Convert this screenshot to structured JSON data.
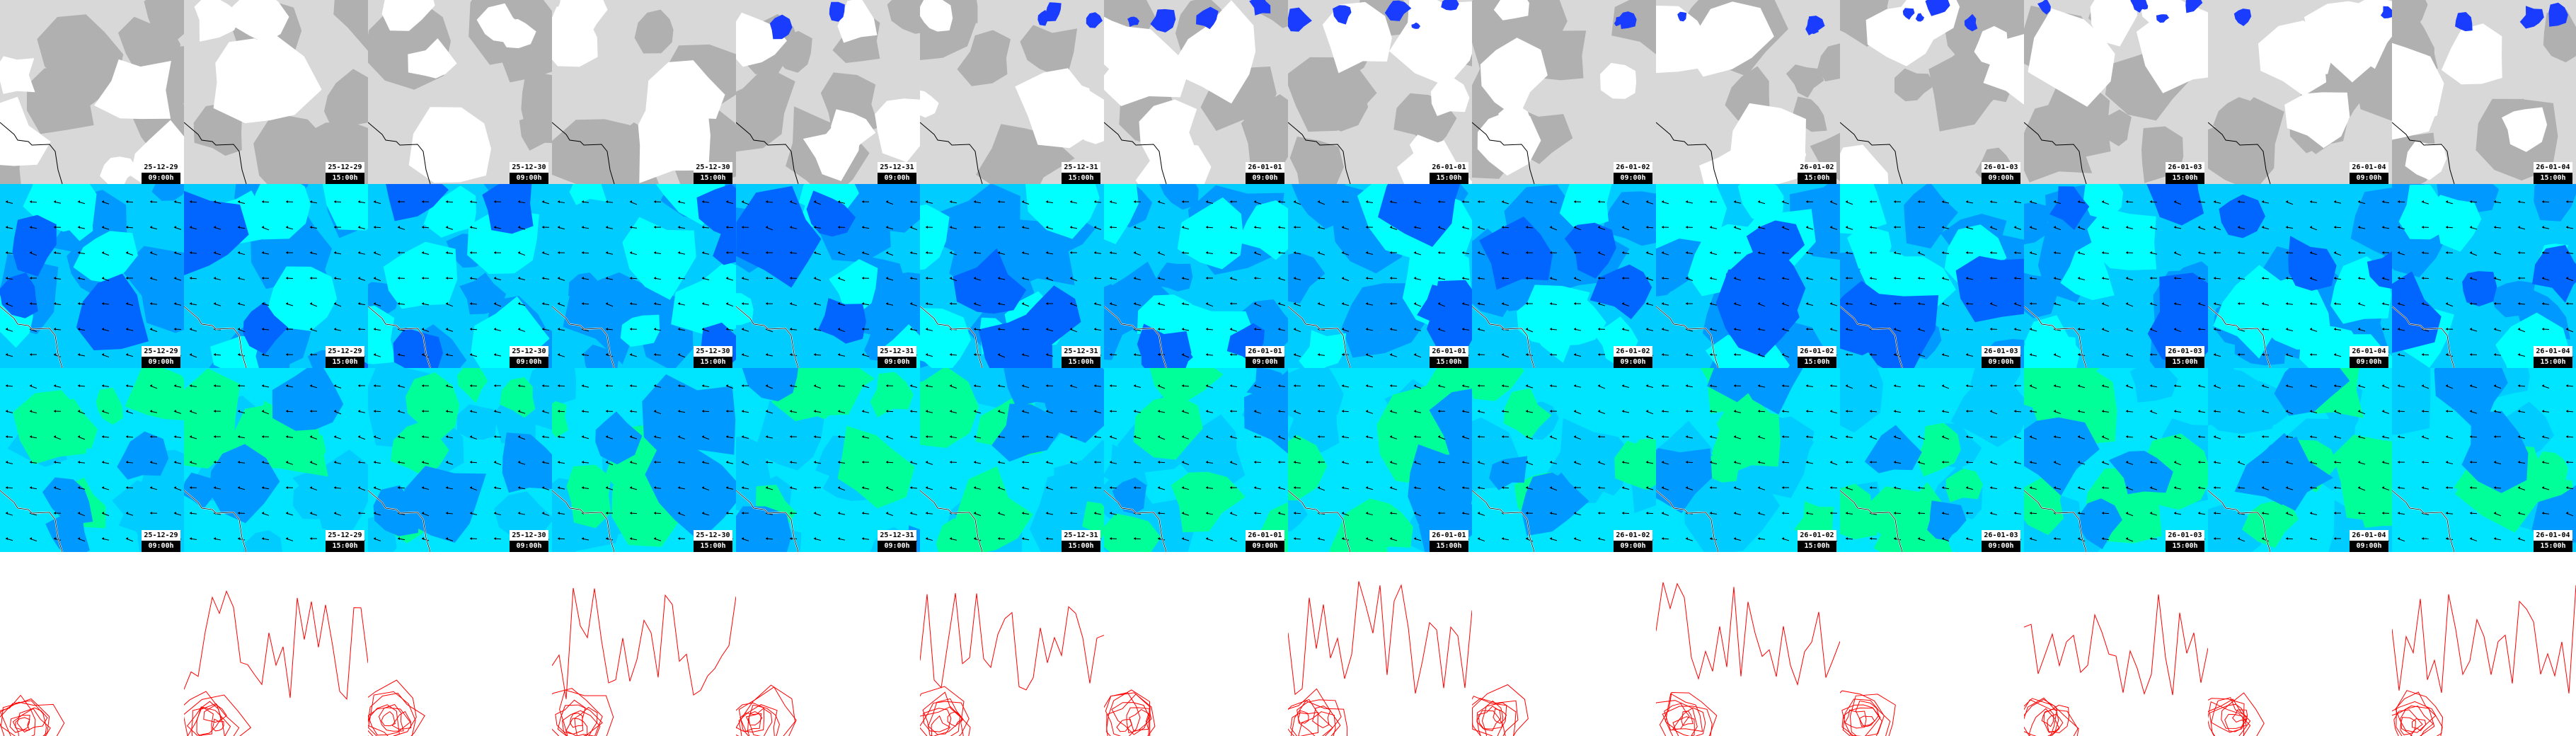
{
  "frames": [
    {
      "date": "25-12-29",
      "time": "09:00h"
    },
    {
      "date": "25-12-29",
      "time": "15:00h"
    },
    {
      "date": "25-12-30",
      "time": "09:00h"
    },
    {
      "date": "25-12-30",
      "time": "15:00h"
    },
    {
      "date": "25-12-31",
      "time": "09:00h"
    },
    {
      "date": "25-12-31",
      "time": "15:00h"
    },
    {
      "date": "26-01-01",
      "time": "09:00h"
    },
    {
      "date": "26-01-01",
      "time": "15:00h"
    },
    {
      "date": "26-01-02",
      "time": "09:00h"
    },
    {
      "date": "26-01-02",
      "time": "15:00h"
    },
    {
      "date": "26-01-03",
      "time": "09:00h"
    },
    {
      "date": "26-01-03",
      "time": "15:00h"
    },
    {
      "date": "26-01-04",
      "time": "09:00h"
    },
    {
      "date": "26-01-04",
      "time": "15:00h"
    }
  ],
  "rows": [
    {
      "id": "cloud",
      "stamped": true,
      "base": "#d8d8d8",
      "layers": [
        "#b0b0b0",
        "#ffffff"
      ],
      "overlay": "#1a3cff"
    },
    {
      "id": "wind",
      "stamped": true,
      "base": "#00ccff",
      "layers": [
        "#0099ff",
        "#00ffff",
        "#0066ff"
      ],
      "arrows": true
    },
    {
      "id": "wind-gust",
      "stamped": true,
      "base": "#00e5ff",
      "layers": [
        "#00ccff",
        "#00ff99",
        "#0099ff"
      ],
      "arrows": true
    },
    {
      "id": "contours",
      "stamped": false,
      "base": "#ffffff",
      "contour": "#ff0000"
    }
  ]
}
